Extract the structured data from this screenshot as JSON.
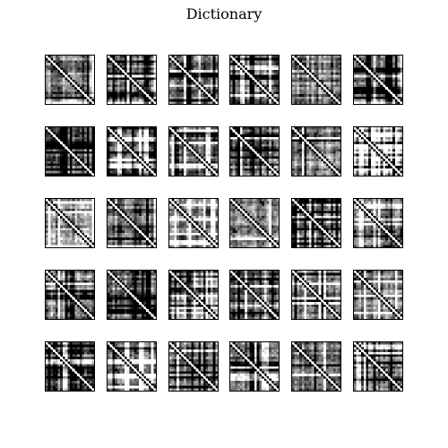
{
  "title": "Dictionary",
  "grid": {
    "rows": 5,
    "cols": 6,
    "matrix_size": 20,
    "colors": {
      "ink": "#000000",
      "paper": "#ffffff",
      "diag_dark": "#000000",
      "diag_light": "#ffffff",
      "frame": "#000000"
    },
    "tiles": [
      {
        "id": 0
      },
      {
        "id": 1
      },
      {
        "id": 2
      },
      {
        "id": 3
      },
      {
        "id": 4
      },
      {
        "id": 5
      },
      {
        "id": 6
      },
      {
        "id": 7
      },
      {
        "id": 8
      },
      {
        "id": 9
      },
      {
        "id": 10
      },
      {
        "id": 11
      },
      {
        "id": 12
      },
      {
        "id": 13
      },
      {
        "id": 14
      },
      {
        "id": 15
      },
      {
        "id": 16
      },
      {
        "id": 17
      },
      {
        "id": 18
      },
      {
        "id": 19
      },
      {
        "id": 20
      },
      {
        "id": 21
      },
      {
        "id": 22
      },
      {
        "id": 23
      },
      {
        "id": 24
      },
      {
        "id": 25
      },
      {
        "id": 26
      },
      {
        "id": 27
      },
      {
        "id": 28
      },
      {
        "id": 29
      }
    ]
  }
}
